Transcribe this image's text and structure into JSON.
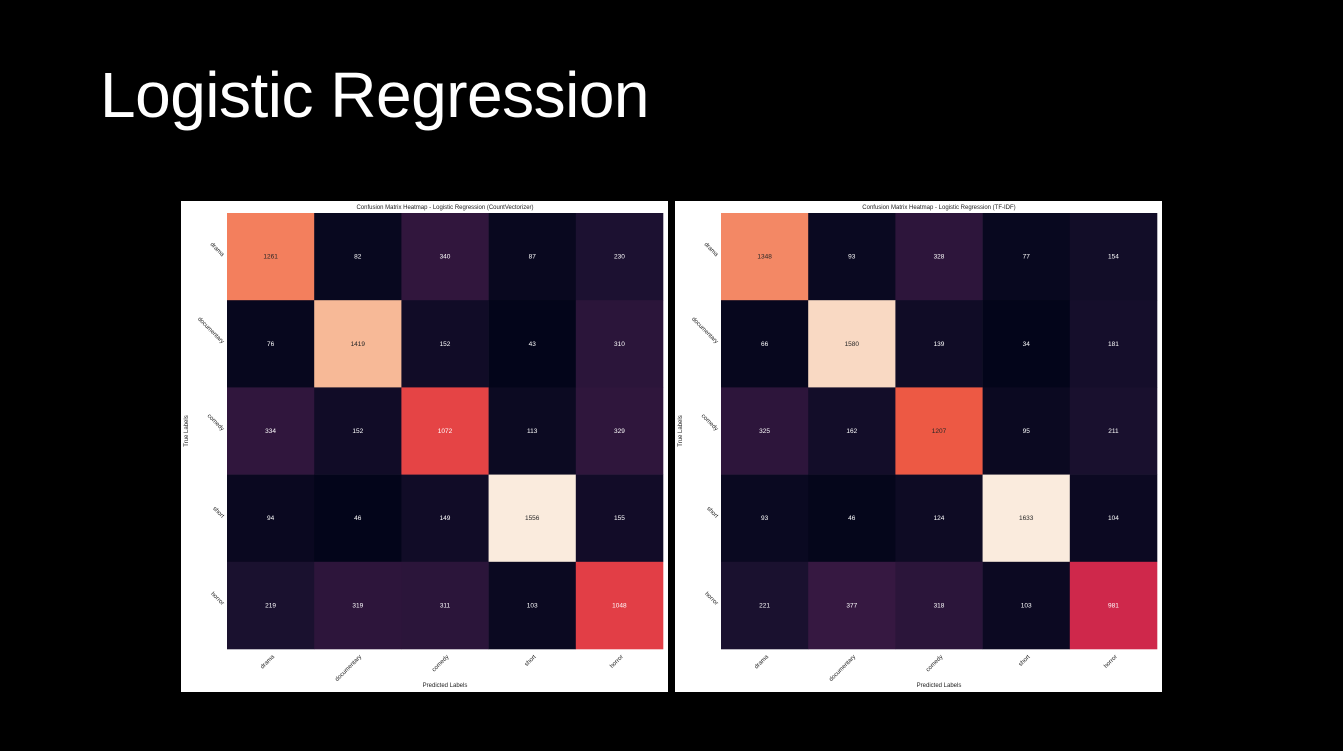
{
  "slide": {
    "title": "Logistic Regression"
  },
  "chart_data": [
    {
      "type": "heatmap",
      "title": "Confusion Matrix Heatmap - Logistic Regression (CountVectorizer)",
      "xlabel": "Predicted Labels",
      "ylabel": "True Labels",
      "x_categories": [
        "drama",
        "documentary",
        "comedy",
        "short",
        "horror"
      ],
      "y_categories": [
        "drama",
        "documentary",
        "comedy",
        "short",
        "horror"
      ],
      "values": [
        [
          1261,
          82,
          340,
          87,
          230
        ],
        [
          76,
          1419,
          152,
          43,
          310
        ],
        [
          334,
          152,
          1072,
          113,
          329
        ],
        [
          94,
          46,
          149,
          1556,
          155
        ],
        [
          219,
          319,
          311,
          103,
          1048
        ]
      ],
      "colorscale": "rocket",
      "colorbar": false
    },
    {
      "type": "heatmap",
      "title": "Confusion Matrix Heatmap - Logistic Regression (TF-IDF)",
      "xlabel": "Predicted Labels",
      "ylabel": "True Labels",
      "x_categories": [
        "drama",
        "documentary",
        "comedy",
        "short",
        "horror"
      ],
      "y_categories": [
        "drama",
        "documentary",
        "comedy",
        "short",
        "horror"
      ],
      "values": [
        [
          1348,
          93,
          328,
          77,
          154
        ],
        [
          66,
          1580,
          139,
          34,
          181
        ],
        [
          325,
          162,
          1207,
          95,
          211
        ],
        [
          93,
          46,
          124,
          1633,
          104
        ],
        [
          221,
          377,
          318,
          103,
          981
        ]
      ],
      "colorscale": "rocket",
      "colorbar": false
    }
  ]
}
